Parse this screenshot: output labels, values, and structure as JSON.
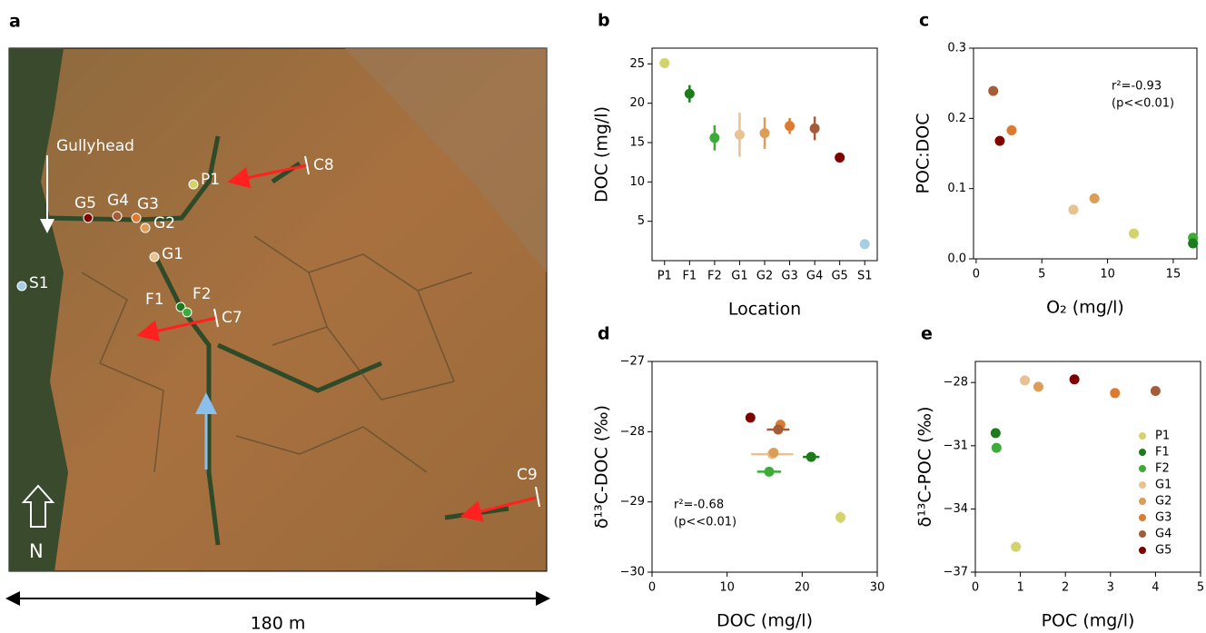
{
  "map": {
    "panel": "a",
    "labels": [
      "Gullyhead",
      "P1",
      "C8",
      "G5",
      "G4",
      "G3",
      "G2",
      "G1",
      "S1",
      "F1",
      "F2",
      "C7",
      "C9",
      "N"
    ],
    "scale": "180 m"
  },
  "chart_data": [
    {
      "type": "category-dot",
      "panel": "b",
      "xlabel": "Location",
      "ylabel": "DOC (mg/l)",
      "categories": [
        "P1",
        "F1",
        "F2",
        "G1",
        "G2",
        "G3",
        "G4",
        "G5",
        "S1"
      ],
      "values": [
        25.1,
        21.2,
        15.6,
        16.0,
        16.2,
        17.1,
        16.8,
        13.1,
        2.1
      ],
      "errors": [
        null,
        1.1,
        1.6,
        2.8,
        2.0,
        1.0,
        1.5,
        null,
        null
      ],
      "colors": [
        "#d2d36a",
        "#1c7c1c",
        "#3cab37",
        "#e8c291",
        "#dc9d58",
        "#dc7b30",
        "#a55b35",
        "#800000",
        "#a6cfe6"
      ],
      "ylim": [
        0,
        27
      ],
      "yticks": [
        5,
        10,
        15,
        20,
        25
      ]
    },
    {
      "type": "scatter",
      "panel": "c",
      "xlabel": "O₂ (mg/l)",
      "ylabel": "POC:DOC",
      "annotation": [
        "r²=-0.93",
        "(p<<0.01)"
      ],
      "x": [
        1.3,
        1.8,
        2.7,
        7.4,
        9.0,
        12.0,
        16.5,
        16.5
      ],
      "values": [
        0.239,
        0.168,
        0.183,
        0.07,
        0.086,
        0.036,
        0.03,
        0.022
      ],
      "colors": [
        "#a55b35",
        "#800000",
        "#dc7b30",
        "#e8c291",
        "#dc9d58",
        "#d2d36a",
        "#3cab37",
        "#1c7c1c"
      ],
      "xlim": [
        -0.2,
        16.8
      ],
      "ylim": [
        0,
        0.3
      ],
      "xticks": [
        0,
        5,
        10,
        15
      ],
      "yticks": [
        {
          "value": 0,
          "label": "0.0"
        },
        0.1,
        0.2,
        0.3
      ]
    },
    {
      "type": "scatter",
      "panel": "d",
      "xlabel": "DOC (mg/l)",
      "ylabel": "δ¹³C-DOC (‰)",
      "annotation": [
        "r²=-0.68",
        "(p<<0.01)"
      ],
      "x": [
        13.1,
        17.1,
        16.8,
        16.0,
        16.2,
        15.6,
        21.2,
        25.1
      ],
      "values": [
        -27.8,
        -27.9,
        -27.97,
        -28.32,
        -28.3,
        -28.57,
        -28.36,
        -29.22
      ],
      "xerr": [
        null,
        null,
        1.5,
        2.8,
        null,
        1.6,
        1.1,
        null
      ],
      "yerr": [
        null,
        null,
        null,
        null,
        null,
        null,
        null,
        0.08
      ],
      "colors": [
        "#800000",
        "#dc7b30",
        "#a55b35",
        "#e8c291",
        "#dc9d58",
        "#3cab37",
        "#1c7c1c",
        "#d2d36a"
      ],
      "xlim": [
        0,
        30
      ],
      "ylim": [
        -30,
        -27
      ],
      "xticks": [
        0,
        10,
        20,
        30
      ],
      "yticks": [
        {
          "value": -30,
          "label": "−30"
        },
        {
          "value": -29,
          "label": "−29"
        },
        {
          "value": -28,
          "label": "−28"
        },
        {
          "value": -27,
          "label": "−27"
        }
      ]
    },
    {
      "type": "scatter-legend",
      "panel": "e",
      "xlabel": "POC (mg/l)",
      "ylabel": "δ¹³C-POC (‰)",
      "series": [
        {
          "name": "P1",
          "color": "#d2d36a",
          "x": [
            0.9
          ],
          "values": [
            -35.8
          ]
        },
        {
          "name": "F1",
          "color": "#1c7c1c",
          "x": [
            0.45
          ],
          "values": [
            -30.4
          ]
        },
        {
          "name": "F2",
          "color": "#3cab37",
          "x": [
            0.47
          ],
          "values": [
            -31.1
          ]
        },
        {
          "name": "G1",
          "color": "#e8c291",
          "x": [
            1.1
          ],
          "values": [
            -27.9
          ]
        },
        {
          "name": "G2",
          "color": "#dc9d58",
          "x": [
            1.4
          ],
          "values": [
            -28.2
          ]
        },
        {
          "name": "G3",
          "color": "#dc7b30",
          "x": [
            3.1
          ],
          "values": [
            -28.5
          ]
        },
        {
          "name": "G4",
          "color": "#a55b35",
          "x": [
            4.0
          ],
          "values": [
            -28.4
          ]
        },
        {
          "name": "G5",
          "color": "#800000",
          "x": [
            2.2
          ],
          "values": [
            -27.85
          ]
        }
      ],
      "xlim": [
        0,
        5
      ],
      "ylim": [
        -37,
        -27
      ],
      "xticks": [
        0,
        1,
        2,
        3,
        4,
        5
      ],
      "yticks": [
        {
          "value": -37,
          "label": "−37"
        },
        {
          "value": -34,
          "label": "−34"
        },
        {
          "value": -31,
          "label": "−31"
        },
        {
          "value": -28,
          "label": "−28"
        }
      ],
      "legend": "lower right"
    }
  ]
}
